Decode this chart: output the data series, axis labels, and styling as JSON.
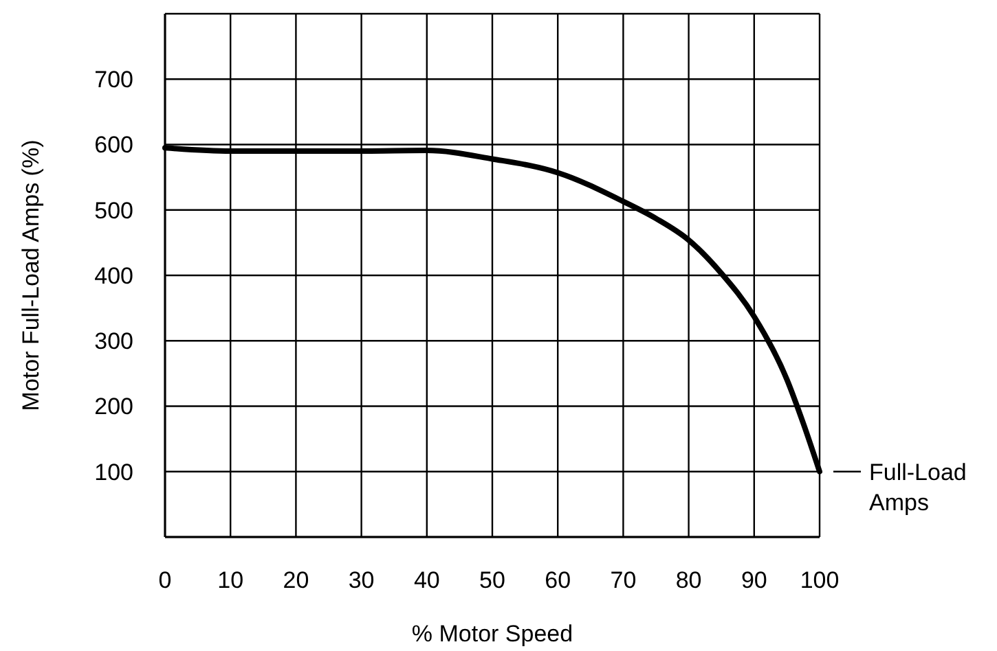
{
  "chart_data": {
    "type": "line",
    "xlabel": "% Motor Speed",
    "ylabel": "Motor Full-Load Amps (%)",
    "x": [
      0,
      10,
      20,
      30,
      40,
      50,
      60,
      70,
      75,
      80,
      85,
      90,
      95,
      97.5,
      100
    ],
    "series": [
      {
        "color": "#000000",
        "values": [
          595,
          590,
          590,
          590,
          591,
          578,
          557,
          513,
          487,
          454,
          403,
          337,
          241,
          174,
          100
        ]
      }
    ],
    "xlim": [
      0,
      100
    ],
    "ylim": [
      0,
      800
    ],
    "xticks": [
      0,
      10,
      20,
      30,
      40,
      50,
      60,
      70,
      80,
      90,
      100
    ],
    "yticks": [
      {
        "value": 0,
        "label": null
      },
      100,
      200,
      300,
      400,
      500,
      600,
      700,
      {
        "value": 800,
        "label": null
      }
    ],
    "grid": true,
    "marker": "none",
    "line_style": "solid",
    "annotations": [
      {
        "text": "Full-Load Amps",
        "x": 100,
        "y": 100
      }
    ]
  }
}
